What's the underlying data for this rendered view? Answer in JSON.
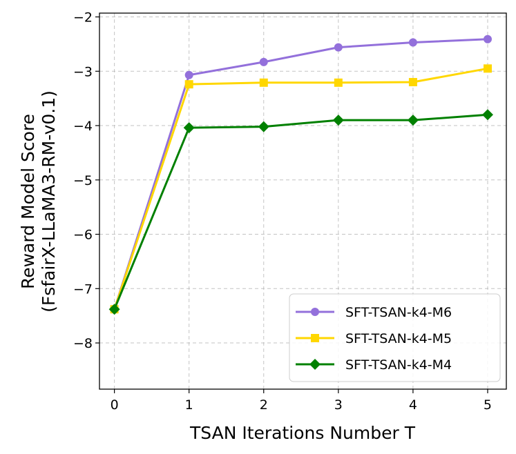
{
  "chart_data": {
    "type": "line",
    "title": "",
    "xlabel": "TSAN Iterations Number T",
    "ylabel_lines": [
      "Reward Model Score",
      "(FsfairX-LLaMA3-RM-v0.1)"
    ],
    "x": [
      0,
      1,
      2,
      3,
      4,
      5
    ],
    "xlim": [
      -0.2,
      5.25
    ],
    "ylim": [
      -8.85,
      -1.93
    ],
    "xticks": [
      0,
      1,
      2,
      3,
      4,
      5
    ],
    "yticks": [
      -8,
      -7,
      -6,
      -5,
      -4,
      -3,
      -2
    ],
    "xtick_labels": [
      "0",
      "1",
      "2",
      "3",
      "4",
      "5"
    ],
    "ytick_labels": [
      "−8",
      "−7",
      "−6",
      "−5",
      "−4",
      "−3",
      "−2"
    ],
    "grid": true,
    "legend_position": "lower-right",
    "series": [
      {
        "name": "SFT-TSAN-k4-M6",
        "color": "#9370db",
        "marker": "circle",
        "values": [
          -7.38,
          -3.07,
          -2.83,
          -2.56,
          -2.47,
          -2.41
        ]
      },
      {
        "name": "SFT-TSAN-k4-M5",
        "color": "#ffd700",
        "marker": "square",
        "values": [
          -7.38,
          -3.24,
          -3.21,
          -3.21,
          -3.2,
          -2.95
        ]
      },
      {
        "name": "SFT-TSAN-k4-M4",
        "color": "#008000",
        "marker": "diamond",
        "values": [
          -7.38,
          -4.04,
          -4.02,
          -3.9,
          -3.9,
          -3.8
        ]
      }
    ]
  }
}
